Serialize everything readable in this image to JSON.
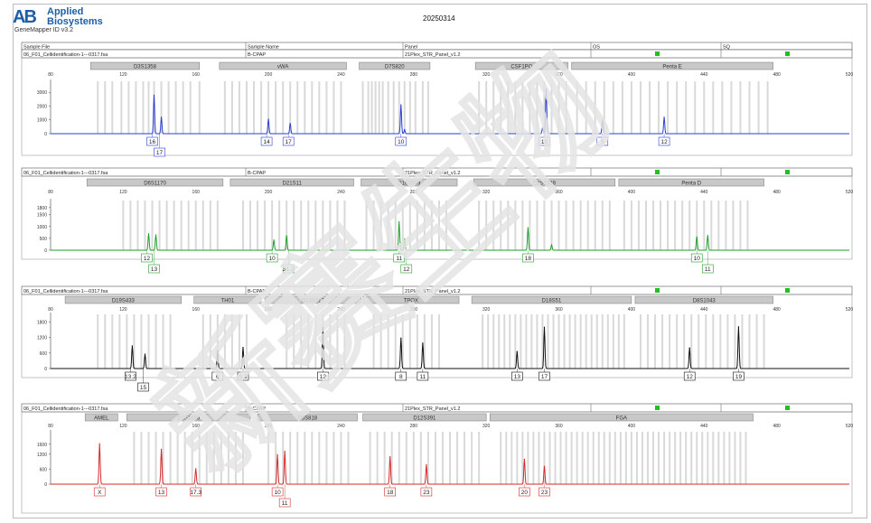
{
  "header": {
    "logo_text": "AB",
    "brand_line1": "Applied",
    "brand_line2": "Biosystems",
    "software": "GeneMapper ID v3.2",
    "date": "20250314"
  },
  "columns": [
    "Sample File",
    "Sample Name",
    "Panel",
    "OS",
    "SQ"
  ],
  "watermark": "新赛生物",
  "colors": {
    "blue": "#2b3fd0",
    "green": "#1e9e2a",
    "black": "#111111",
    "red": "#d42a2a",
    "bin": "#cccccc",
    "status": "#22c122"
  },
  "chart_data": [
    {
      "type": "line",
      "sample_file": "06_F01_Cellidentification-1---0317.fsa",
      "sample_name": "B-CPAP",
      "panel": "21Plex_STR_Panel_v1.2",
      "color": "#2b3fd0",
      "xlim": [
        80,
        520
      ],
      "x_ticks": [
        80,
        120,
        160,
        200,
        240,
        280,
        320,
        360,
        400,
        440,
        480,
        520
      ],
      "ylim": [
        0,
        3800
      ],
      "y_ticks": [
        0,
        1000,
        2000,
        3000
      ],
      "markers": [
        {
          "name": "D3S1358",
          "start": 102,
          "end": 162
        },
        {
          "name": "vWA",
          "start": 173,
          "end": 243
        },
        {
          "name": "D7S820",
          "start": 250,
          "end": 289
        },
        {
          "name": "CSF1PO",
          "start": 314,
          "end": 365
        },
        {
          "name": "Penta E",
          "start": 367,
          "end": 478
        }
      ],
      "bins": [
        106,
        110,
        114,
        119,
        123,
        127,
        131,
        134,
        137,
        141,
        145,
        149,
        153,
        157,
        162,
        176,
        180,
        184,
        188,
        192,
        196,
        200,
        204,
        208,
        212,
        216,
        220,
        224,
        228,
        232,
        236,
        240,
        252,
        255,
        257,
        259,
        261,
        263,
        266,
        269,
        272,
        275,
        278,
        281,
        285,
        288,
        316,
        320,
        324,
        328,
        332,
        336,
        340,
        344,
        348,
        352,
        356,
        360,
        364,
        370,
        375,
        380,
        385,
        390,
        395,
        400,
        405,
        410,
        415,
        420,
        425,
        430,
        435,
        440,
        445,
        450,
        455,
        460,
        465,
        470,
        475
      ],
      "peaks": [
        {
          "x": 137,
          "h": 2800
        },
        {
          "x": 141,
          "h": 1200
        },
        {
          "x": 200,
          "h": 1050
        },
        {
          "x": 212,
          "h": 750
        },
        {
          "x": 273,
          "h": 2100
        },
        {
          "x": 275,
          "h": 280
        },
        {
          "x": 353,
          "h": 3250
        },
        {
          "x": 351,
          "h": 420
        },
        {
          "x": 384,
          "h": 1000
        },
        {
          "x": 418,
          "h": 1200
        }
      ],
      "alleles": [
        {
          "x": 136,
          "label": "16",
          "row": 0
        },
        {
          "x": 140,
          "label": "17",
          "row": 1
        },
        {
          "x": 199,
          "label": "14",
          "row": 0
        },
        {
          "x": 211,
          "label": "17",
          "row": 0
        },
        {
          "x": 273,
          "label": "10",
          "row": 0
        },
        {
          "x": 352,
          "label": "13",
          "row": 0
        },
        {
          "x": 384,
          "label": "5",
          "row": 0
        },
        {
          "x": 418,
          "label": "12",
          "row": 0
        }
      ]
    },
    {
      "type": "line",
      "sample_file": "06_F01_Cellidentification-1---0317.fsa",
      "sample_name": "B-CPAP",
      "panel": "21Plex_STR_Panel_v1.2",
      "color": "#1e9e2a",
      "xlim": [
        80,
        520
      ],
      "x_ticks": [
        80,
        120,
        160,
        200,
        240,
        280,
        320,
        360,
        400,
        440,
        480,
        520
      ],
      "ylim": [
        0,
        2100
      ],
      "y_ticks": [
        0,
        500,
        1000,
        1500,
        1800
      ],
      "markers": [
        {
          "name": "D6S1170",
          "start": 100,
          "end": 175
        },
        {
          "name": "D21S11",
          "start": 179,
          "end": 247
        },
        {
          "name": "D16S539",
          "start": 251,
          "end": 304
        },
        {
          "name": "D2S1338",
          "start": 313,
          "end": 391
        },
        {
          "name": "Penta D",
          "start": 393,
          "end": 473
        }
      ],
      "bins": [
        120,
        124,
        128,
        132,
        136,
        140,
        144,
        148,
        152,
        156,
        160,
        164,
        168,
        172,
        186,
        190,
        194,
        198,
        202,
        206,
        210,
        214,
        218,
        222,
        226,
        230,
        234,
        238,
        242,
        254,
        258,
        262,
        266,
        270,
        274,
        278,
        282,
        286,
        290,
        294,
        298,
        316,
        320,
        324,
        328,
        332,
        336,
        340,
        344,
        348,
        352,
        356,
        360,
        364,
        368,
        372,
        376,
        380,
        384,
        388,
        396,
        400,
        404,
        408,
        412,
        416,
        420,
        424,
        428,
        432,
        436,
        440,
        444,
        448,
        452,
        456,
        460,
        464
      ],
      "peaks": [
        {
          "x": 134,
          "h": 700
        },
        {
          "x": 138,
          "h": 650
        },
        {
          "x": 203,
          "h": 430
        },
        {
          "x": 210,
          "h": 610
        },
        {
          "x": 272,
          "h": 1200
        },
        {
          "x": 275,
          "h": 480
        },
        {
          "x": 343,
          "h": 950
        },
        {
          "x": 356,
          "h": 220
        },
        {
          "x": 436,
          "h": 560
        },
        {
          "x": 442,
          "h": 620
        }
      ],
      "alleles": [
        {
          "x": 133,
          "label": "12",
          "row": 0
        },
        {
          "x": 137,
          "label": "13",
          "row": 1
        },
        {
          "x": 202,
          "label": "10",
          "row": 0
        },
        {
          "x": 211,
          "label": "31.2",
          "row": 1
        },
        {
          "x": 272,
          "label": "11",
          "row": 0
        },
        {
          "x": 276,
          "label": "12",
          "row": 1
        },
        {
          "x": 343,
          "label": "18",
          "row": 0
        },
        {
          "x": 436,
          "label": "10",
          "row": 0
        },
        {
          "x": 442,
          "label": "11",
          "row": 1
        }
      ]
    },
    {
      "type": "line",
      "sample_file": "06_F01_Cellidentification-1---0317.fsa",
      "sample_name": "B-CPAP",
      "panel": "21Plex_STR_Panel_v1.2",
      "color": "#111111",
      "xlim": [
        80,
        520
      ],
      "x_ticks": [
        80,
        120,
        160,
        200,
        240,
        280,
        320,
        360,
        400,
        440,
        480,
        520
      ],
      "ylim": [
        0,
        2100
      ],
      "y_ticks": [
        0,
        600,
        1200,
        1800
      ],
      "markers": [
        {
          "name": "D19S433",
          "start": 88,
          "end": 152
        },
        {
          "name": "TH01",
          "start": 159,
          "end": 196
        },
        {
          "name": "D13S317",
          "start": 198,
          "end": 251
        },
        {
          "name": "TPOX",
          "start": 252,
          "end": 305
        },
        {
          "name": "D18S51",
          "start": 312,
          "end": 400
        },
        {
          "name": "D8S1043",
          "start": 402,
          "end": 478
        }
      ],
      "bins": [
        106,
        110,
        114,
        118,
        122,
        126,
        130,
        134,
        138,
        142,
        146,
        164,
        168,
        172,
        176,
        180,
        184,
        188,
        210,
        214,
        218,
        222,
        226,
        230,
        234,
        238,
        242,
        258,
        262,
        266,
        270,
        274,
        278,
        282,
        286,
        290,
        294,
        318,
        321,
        324,
        327,
        330,
        333,
        336,
        339,
        342,
        345,
        348,
        351,
        354,
        357,
        360,
        363,
        366,
        369,
        372,
        375,
        378,
        381,
        384,
        387,
        390,
        393,
        396,
        405,
        409,
        413,
        417,
        421,
        425,
        429,
        433,
        437,
        441,
        445,
        449,
        453,
        457,
        461,
        465,
        469,
        473
      ],
      "peaks": [
        {
          "x": 125,
          "h": 880
        },
        {
          "x": 132,
          "h": 560
        },
        {
          "x": 172,
          "h": 700
        },
        {
          "x": 186,
          "h": 820
        },
        {
          "x": 230,
          "h": 1600
        },
        {
          "x": 273,
          "h": 1180
        },
        {
          "x": 285,
          "h": 990
        },
        {
          "x": 337,
          "h": 660
        },
        {
          "x": 352,
          "h": 1600
        },
        {
          "x": 432,
          "h": 800
        },
        {
          "x": 459,
          "h": 1620
        }
      ],
      "alleles": [
        {
          "x": 124,
          "label": "13.2",
          "row": 0
        },
        {
          "x": 131,
          "label": "15",
          "row": 1
        },
        {
          "x": 172,
          "label": "6",
          "row": 0
        },
        {
          "x": 186,
          "label": "9.3",
          "row": 0
        },
        {
          "x": 230,
          "label": "12",
          "row": 0
        },
        {
          "x": 273,
          "label": "8",
          "row": 0
        },
        {
          "x": 285,
          "label": "11",
          "row": 0
        },
        {
          "x": 337,
          "label": "13",
          "row": 0
        },
        {
          "x": 352,
          "label": "17",
          "row": 0
        },
        {
          "x": 432,
          "label": "12",
          "row": 0
        },
        {
          "x": 459,
          "label": "19",
          "row": 0
        }
      ]
    },
    {
      "type": "line",
      "sample_file": "06_F01_Cellidentification-1---0317.fsa",
      "sample_name": "B-CPAP",
      "panel": "21Plex_STR_Panel_v1.2",
      "color": "#d42a2a",
      "xlim": [
        80,
        520
      ],
      "x_ticks": [
        80,
        120,
        160,
        200,
        240,
        280,
        320,
        360,
        400,
        440,
        480,
        520
      ],
      "ylim": [
        0,
        2100
      ],
      "y_ticks": [
        0,
        600,
        1200,
        1600
      ],
      "markers": [
        {
          "name": "AMEL",
          "start": 99,
          "end": 117
        },
        {
          "name": "D1S1656",
          "start": 122,
          "end": 190
        },
        {
          "name": "D5S818",
          "start": 194,
          "end": 249
        },
        {
          "name": "D12S391",
          "start": 252,
          "end": 320
        },
        {
          "name": "FGA",
          "start": 322,
          "end": 467
        }
      ],
      "bins": [
        126,
        130,
        134,
        138,
        142,
        146,
        150,
        154,
        158,
        162,
        166,
        170,
        174,
        178,
        182,
        186,
        200,
        204,
        208,
        212,
        216,
        220,
        224,
        228,
        232,
        236,
        240,
        244,
        256,
        260,
        264,
        268,
        272,
        276,
        280,
        284,
        288,
        292,
        296,
        300,
        304,
        308,
        312,
        316,
        328,
        331,
        334,
        337,
        340,
        343,
        346,
        349,
        352,
        355,
        358,
        361,
        364,
        367,
        370,
        373,
        376,
        379,
        382,
        385,
        388,
        391,
        394,
        397,
        400,
        403,
        406,
        409,
        412,
        415,
        418,
        421,
        424,
        427,
        430,
        433,
        436,
        439,
        442,
        445,
        448,
        451,
        454,
        457,
        460,
        463
      ],
      "peaks": [
        {
          "x": 107,
          "h": 1620
        },
        {
          "x": 141,
          "h": 1400
        },
        {
          "x": 160,
          "h": 620
        },
        {
          "x": 205,
          "h": 1180
        },
        {
          "x": 209,
          "h": 1320
        },
        {
          "x": 267,
          "h": 1100
        },
        {
          "x": 287,
          "h": 780
        },
        {
          "x": 341,
          "h": 1000
        },
        {
          "x": 352,
          "h": 720
        }
      ],
      "alleles": [
        {
          "x": 107,
          "label": "X",
          "row": 0
        },
        {
          "x": 141,
          "label": "13",
          "row": 0
        },
        {
          "x": 160,
          "label": "17.3",
          "row": 0
        },
        {
          "x": 205,
          "label": "10",
          "row": 0
        },
        {
          "x": 209,
          "label": "11",
          "row": 1
        },
        {
          "x": 267,
          "label": "18",
          "row": 0
        },
        {
          "x": 287,
          "label": "23",
          "row": 0
        },
        {
          "x": 341,
          "label": "20",
          "row": 0
        },
        {
          "x": 352,
          "label": "23",
          "row": 0
        }
      ]
    }
  ]
}
